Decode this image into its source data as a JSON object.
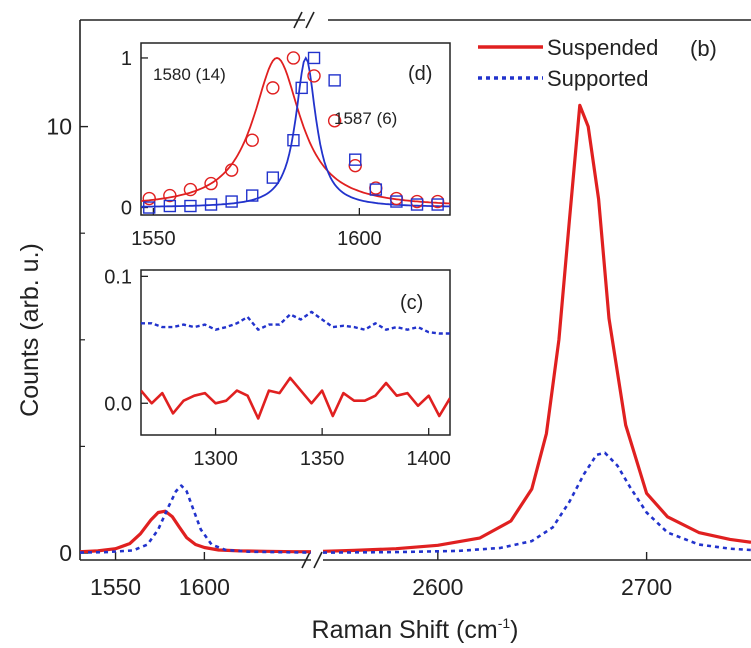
{
  "chart_data": [
    {
      "panel": "main",
      "panel_label": "(b)",
      "type": "line",
      "xlabel_prefix": "Raman Shift (cm",
      "xlabel_sup": "-1",
      "xlabel_suffix": ")",
      "ylabel": "Counts (arb. u.)",
      "ylim": [
        0,
        12.5
      ],
      "yticks": [
        0,
        10
      ],
      "segments": [
        {
          "xlim": [
            1530,
            1660
          ],
          "xticks": [
            1550,
            1600
          ]
        },
        {
          "xlim": [
            2545,
            2750
          ],
          "xticks": [
            2600,
            2700
          ]
        }
      ],
      "series": [
        {
          "name": "Suspended",
          "color": "#e02020",
          "dash": "solid",
          "segment_data": [
            {
              "x": [
                1530,
                1540,
                1550,
                1558,
                1564,
                1570,
                1574,
                1578,
                1582,
                1586,
                1590,
                1595,
                1600,
                1608,
                1620,
                1635,
                1650,
                1660
              ],
              "y": [
                0.03,
                0.05,
                0.1,
                0.22,
                0.45,
                0.78,
                0.95,
                0.98,
                0.85,
                0.6,
                0.36,
                0.2,
                0.13,
                0.07,
                0.05,
                0.04,
                0.03,
                0.03
              ]
            },
            {
              "x": [
                2545,
                2560,
                2580,
                2600,
                2620,
                2635,
                2645,
                2652,
                2658,
                2663,
                2668,
                2672,
                2677,
                2682,
                2690,
                2700,
                2710,
                2725,
                2740,
                2750
              ],
              "y": [
                0.04,
                0.06,
                0.1,
                0.18,
                0.35,
                0.75,
                1.5,
                2.8,
                5.0,
                7.8,
                10.5,
                10.0,
                8.3,
                5.5,
                3.0,
                1.4,
                0.85,
                0.48,
                0.32,
                0.25
              ]
            }
          ]
        },
        {
          "name": "Supported",
          "color": "#2233cc",
          "dash": "4,4",
          "segment_data": [
            {
              "x": [
                1530,
                1545,
                1560,
                1568,
                1574,
                1580,
                1584,
                1587,
                1590,
                1594,
                1598,
                1604,
                1612,
                1625,
                1640,
                1660
              ],
              "y": [
                0.01,
                0.02,
                0.06,
                0.2,
                0.55,
                1.1,
                1.45,
                1.58,
                1.45,
                1.0,
                0.55,
                0.2,
                0.07,
                0.03,
                0.02,
                0.01
              ]
            },
            {
              "x": [
                2545,
                2580,
                2610,
                2630,
                2645,
                2655,
                2663,
                2670,
                2676,
                2680,
                2686,
                2692,
                2700,
                2710,
                2725,
                2740,
                2750
              ],
              "y": [
                0.01,
                0.02,
                0.05,
                0.12,
                0.28,
                0.6,
                1.2,
                1.85,
                2.3,
                2.35,
                2.05,
                1.55,
                0.95,
                0.48,
                0.2,
                0.1,
                0.07
              ]
            }
          ]
        }
      ]
    },
    {
      "panel": "inset_d",
      "panel_label": "(d)",
      "type": "scatter",
      "xlim": [
        1547,
        1622
      ],
      "ylim": [
        -0.05,
        1.1
      ],
      "xticks": [
        1550,
        1600
      ],
      "yticks": [
        0,
        1
      ],
      "annotations": [
        "1580 (14)",
        "1587 (6)"
      ],
      "series": [
        {
          "color": "#e02020",
          "marker": "circle",
          "x": [
            1549,
            1554,
            1559,
            1564,
            1569,
            1574,
            1579,
            1584,
            1589,
            1594,
            1599,
            1604,
            1609,
            1614,
            1619
          ],
          "y": [
            0.06,
            0.08,
            0.12,
            0.16,
            0.25,
            0.45,
            0.8,
            1.0,
            0.88,
            0.58,
            0.28,
            0.13,
            0.06,
            0.04,
            0.04
          ]
        },
        {
          "color": "#2233cc",
          "marker": "square",
          "x": [
            1549,
            1554,
            1559,
            1564,
            1569,
            1574,
            1579,
            1584,
            1586,
            1589,
            1594,
            1599,
            1604,
            1609,
            1614,
            1619
          ],
          "y": [
            0.0,
            0.01,
            0.01,
            0.02,
            0.04,
            0.08,
            0.2,
            0.45,
            0.8,
            1.0,
            0.85,
            0.32,
            0.12,
            0.04,
            0.02,
            0.02
          ]
        }
      ],
      "fit_curves": [
        {
          "color": "#e02020",
          "center": 1580,
          "fwhm": 14
        },
        {
          "color": "#2233cc",
          "center": 1587,
          "fwhm": 6
        }
      ]
    },
    {
      "panel": "inset_c",
      "panel_label": "(c)",
      "type": "line",
      "xlim": [
        1265,
        1410
      ],
      "ylim": [
        -0.025,
        0.105
      ],
      "xticks": [
        1300,
        1350,
        1400
      ],
      "yticks": [
        0.0,
        0.1
      ],
      "ytick_labels": [
        "0.0",
        "0.1"
      ],
      "series": [
        {
          "color": "#e02020",
          "dash": "solid",
          "x": [
            1265,
            1270,
            1275,
            1280,
            1285,
            1290,
            1295,
            1300,
            1305,
            1310,
            1315,
            1320,
            1325,
            1330,
            1335,
            1340,
            1345,
            1350,
            1355,
            1360,
            1365,
            1370,
            1375,
            1380,
            1385,
            1390,
            1395,
            1400,
            1405,
            1410
          ],
          "y": [
            0.01,
            0.0,
            0.008,
            -0.008,
            0.002,
            0.006,
            0.008,
            0.0,
            0.002,
            0.01,
            0.006,
            -0.012,
            0.01,
            0.008,
            0.02,
            0.01,
            0.0,
            0.01,
            -0.01,
            0.008,
            0.002,
            0.002,
            0.006,
            0.016,
            0.006,
            0.008,
            -0.002,
            0.006,
            -0.01,
            0.004
          ]
        },
        {
          "color": "#2233cc",
          "dash": "4,3",
          "x": [
            1265,
            1270,
            1275,
            1280,
            1285,
            1290,
            1295,
            1300,
            1305,
            1310,
            1315,
            1320,
            1325,
            1330,
            1335,
            1340,
            1345,
            1350,
            1355,
            1360,
            1365,
            1370,
            1375,
            1380,
            1385,
            1390,
            1395,
            1400,
            1405,
            1410
          ],
          "y": [
            0.063,
            0.063,
            0.06,
            0.06,
            0.062,
            0.06,
            0.062,
            0.058,
            0.06,
            0.063,
            0.068,
            0.058,
            0.062,
            0.062,
            0.07,
            0.066,
            0.072,
            0.066,
            0.06,
            0.061,
            0.06,
            0.058,
            0.063,
            0.058,
            0.06,
            0.058,
            0.06,
            0.056,
            0.055,
            0.055
          ]
        }
      ]
    }
  ]
}
